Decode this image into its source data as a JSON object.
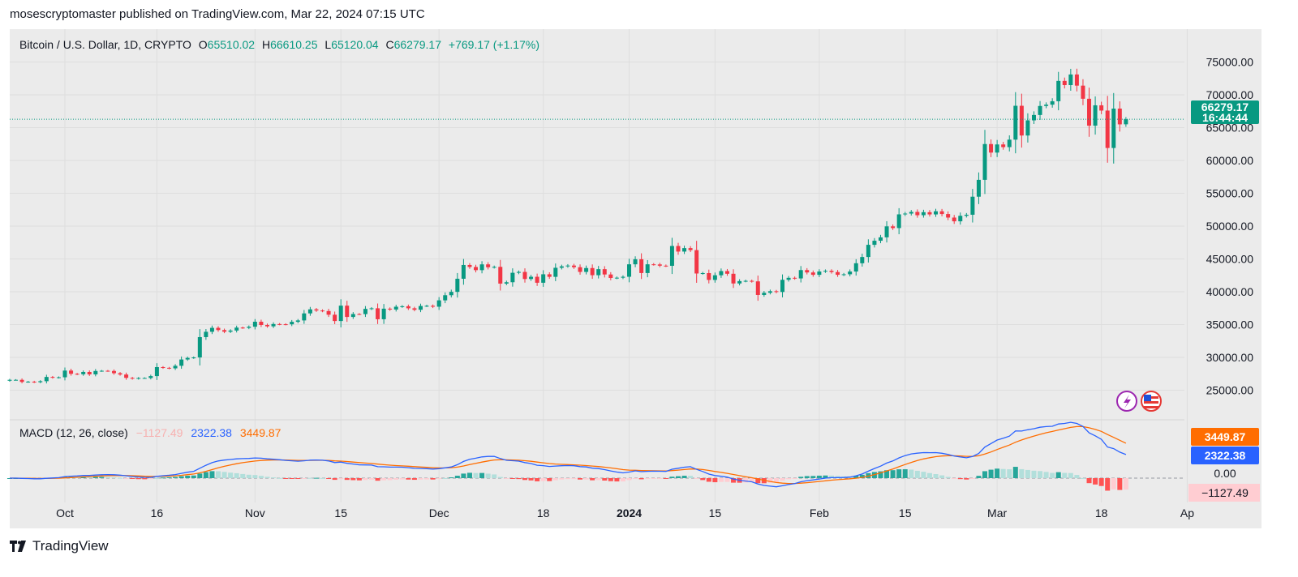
{
  "header": {
    "published": "mosescryptomaster published on TradingView.com, Mar 22, 2024 07:15 UTC"
  },
  "legend": {
    "symbol": "Bitcoin / U.S. Dollar, 1D, CRYPTO",
    "open_label": "O",
    "open": "65510.02",
    "high_label": "H",
    "high": "66610.25",
    "low_label": "L",
    "low": "65120.04",
    "close_label": "C",
    "close": "66279.17",
    "change": "+769.17 (+1.17%)"
  },
  "price_label": {
    "price": "66279.17",
    "countdown": "16:44:44"
  },
  "macd_legend": {
    "title": "MACD (12, 26, close)",
    "histogram": "−1127.49",
    "macd": "2322.38",
    "signal": "3449.87"
  },
  "macd_axis": {
    "signal_label": "3449.87",
    "macd_label": "2322.38",
    "zero_label": "0.00",
    "hist_label": "−1127.49"
  },
  "icons": [
    "lightning-icon",
    "us-flag-icon"
  ],
  "footer": {
    "logo": "TradingView"
  },
  "colors": {
    "up": "#089981",
    "down": "#f23645",
    "macd": "#2962ff",
    "signal": "#ff6d00",
    "hist_up_grow": "#26a69a",
    "hist_up_fall": "#b2dfdb",
    "hist_dn_grow": "#ffcdd2",
    "hist_dn_fall": "#ff5252",
    "background": "#ebebeb"
  },
  "chart_data": {
    "type": "candlestick",
    "x_start": "2023-09-22",
    "interval": "1D",
    "y_ticks": [
      25000,
      30000,
      35000,
      40000,
      45000,
      50000,
      55000,
      60000,
      65000,
      70000,
      75000
    ],
    "y_tick_labels": [
      "25000.00",
      "30000.00",
      "35000.00",
      "40000.00",
      "45000.00",
      "50000.00",
      "55000.00",
      "60000.00",
      "65000.00",
      "70000.00",
      "75000.00"
    ],
    "ylim": [
      24000,
      76000
    ],
    "x_ticks": [
      {
        "date": "2023-10-01",
        "label": "Oct"
      },
      {
        "date": "2023-10-16",
        "label": "16"
      },
      {
        "date": "2023-11-01",
        "label": "Nov"
      },
      {
        "date": "2023-11-15",
        "label": "15"
      },
      {
        "date": "2023-12-01",
        "label": "Dec"
      },
      {
        "date": "2023-12-18",
        "label": "18"
      },
      {
        "date": "2024-01-01",
        "label": "2024"
      },
      {
        "date": "2024-01-15",
        "label": "15"
      },
      {
        "date": "2024-02-01",
        "label": "Feb"
      },
      {
        "date": "2024-02-15",
        "label": "15"
      },
      {
        "date": "2024-03-01",
        "label": "Mar"
      },
      {
        "date": "2024-03-18",
        "label": "18"
      },
      {
        "date": "2024-04-01",
        "label": "Ap"
      }
    ],
    "grid": true,
    "closes": [
      26580,
      26580,
      26260,
      26300,
      26220,
      26370,
      27020,
      26910,
      26970,
      27990,
      27500,
      27430,
      27780,
      27410,
      27930,
      27960,
      27930,
      27590,
      27390,
      26880,
      26760,
      26860,
      26860,
      27150,
      28520,
      28410,
      28330,
      28720,
      29680,
      29920,
      29990,
      33090,
      33900,
      34500,
      34160,
      33910,
      34090,
      34540,
      34500,
      34670,
      35430,
      34940,
      34730,
      35080,
      35050,
      35040,
      35420,
      35630,
      36700,
      37320,
      37140,
      37060,
      36500,
      35540,
      37880,
      36160,
      36600,
      36590,
      37390,
      37480,
      35810,
      37420,
      37290,
      37720,
      37790,
      37480,
      37250,
      37830,
      37860,
      37720,
      38690,
      39470,
      39980,
      41980,
      44080,
      43770,
      43290,
      44170,
      43730,
      43790,
      41240,
      41450,
      42890,
      43020,
      41940,
      42280,
      41370,
      42660,
      42270,
      43650,
      43870,
      43990,
      43740,
      43020,
      43610,
      42520,
      43440,
      42630,
      42100,
      42140,
      42280,
      44180,
      44950,
      42850,
      44180,
      44160,
      43970,
      43950,
      46970,
      46120,
      46650,
      46340,
      42780,
      42840,
      41800,
      42510,
      43150,
      42740,
      41260,
      41620,
      41660,
      41580,
      39510,
      39840,
      40080,
      39960,
      41820,
      42120,
      42030,
      43300,
      42940,
      42580,
      43080,
      43190,
      43000,
      42580,
      42660,
      43080,
      44340,
      45290,
      47150,
      47770,
      48290,
      49960,
      49700,
      51790,
      51910,
      52160,
      51660,
      52120,
      51780,
      52260,
      51840,
      51300,
      50730,
      51570,
      51730,
      54480,
      57050,
      62500,
      61200,
      62440,
      62030,
      63170,
      68330,
      63800,
      66110,
      66930,
      68300,
      68500,
      69020,
      72120,
      71480,
      73100,
      71400,
      69400,
      65300,
      68400,
      67600,
      61900,
      67900,
      65500,
      66279.17
    ],
    "last": {
      "open": 65510.02,
      "high": 66610.25,
      "low": 65120.04,
      "close": 66279.17
    },
    "macd": {
      "fast": 12,
      "slow": 26,
      "signal": 9,
      "source": "close",
      "last_macd": 2322.38,
      "last_signal": 3449.87,
      "last_histogram": -1127.49
    }
  }
}
